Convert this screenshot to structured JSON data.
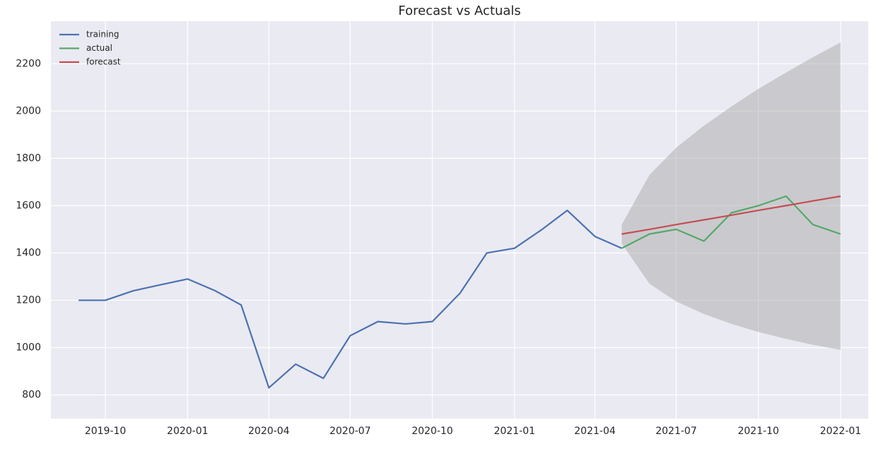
{
  "chart_data": {
    "type": "line",
    "title": "Forecast vs Actuals",
    "xlim": [
      "2019-08",
      "2022-02"
    ],
    "xticks": [
      "2019-10",
      "2020-01",
      "2020-04",
      "2020-07",
      "2020-10",
      "2021-01",
      "2021-04",
      "2021-07",
      "2021-10",
      "2022-01"
    ],
    "ylim": [
      700,
      2380
    ],
    "yticks": [
      800,
      1000,
      1200,
      1400,
      1600,
      1800,
      2000,
      2200
    ],
    "grid": true,
    "legend": "upper-left",
    "band": {
      "color": "#a9a9a9",
      "x": [
        "2021-05",
        "2021-06",
        "2021-07",
        "2021-08",
        "2021-09",
        "2021-10",
        "2021-11",
        "2021-12",
        "2022-01"
      ],
      "lower": [
        1440,
        1270,
        1195,
        1142,
        1100,
        1066,
        1037,
        1012,
        990
      ],
      "upper": [
        1520,
        1730,
        1845,
        1938,
        2020,
        2094,
        2163,
        2228,
        2290
      ]
    },
    "series": [
      {
        "name": "training",
        "color": "#4c72b0",
        "x": [
          "2019-09",
          "2019-10",
          "2019-11",
          "2019-12",
          "2020-01",
          "2020-02",
          "2020-03",
          "2020-04",
          "2020-05",
          "2020-06",
          "2020-07",
          "2020-08",
          "2020-09",
          "2020-10",
          "2020-11",
          "2020-12",
          "2021-01",
          "2021-02",
          "2021-03",
          "2021-04",
          "2021-05"
        ],
        "values": [
          1200,
          1200,
          1240,
          1265,
          1290,
          1240,
          1180,
          830,
          930,
          870,
          1050,
          1110,
          1100,
          1110,
          1230,
          1400,
          1420,
          1500,
          1580,
          1470,
          1420
        ]
      },
      {
        "name": "actual",
        "color": "#55a868",
        "x": [
          "2021-05",
          "2021-06",
          "2021-07",
          "2021-08",
          "2021-09",
          "2021-10",
          "2021-11",
          "2021-12",
          "2022-01"
        ],
        "values": [
          1420,
          1480,
          1500,
          1450,
          1570,
          1600,
          1640,
          1520,
          1480
        ]
      },
      {
        "name": "forecast",
        "color": "#c44e52",
        "x": [
          "2021-05",
          "2021-06",
          "2021-07",
          "2021-08",
          "2021-09",
          "2021-10",
          "2021-11",
          "2021-12",
          "2022-01"
        ],
        "values": [
          1480,
          1500,
          1520,
          1540,
          1560,
          1580,
          1600,
          1620,
          1640
        ]
      }
    ]
  }
}
